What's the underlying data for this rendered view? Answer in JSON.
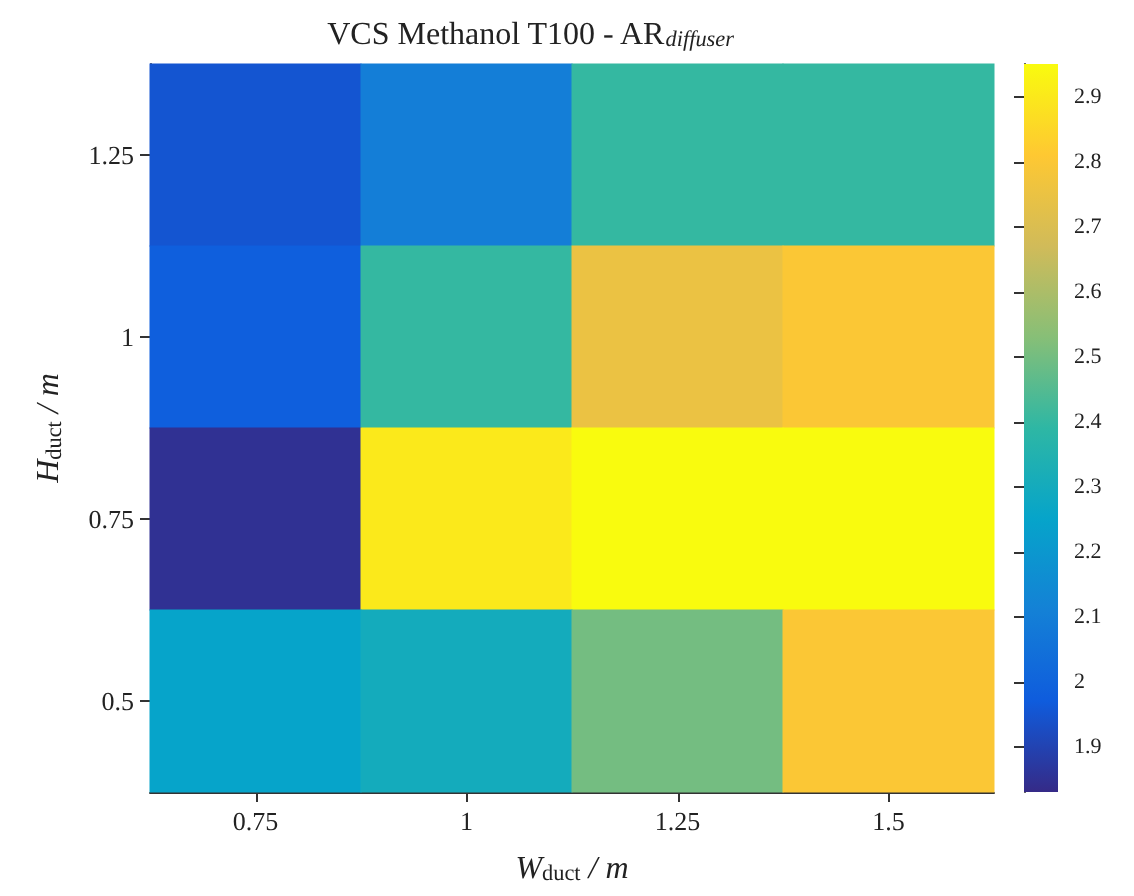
{
  "chart_data": {
    "type": "heatmap",
    "title": "VCS Methanol T100 - AR$_{diffuser}$",
    "xlabel": "W$_{duct}$ / m",
    "ylabel": "H$_{duct}$ / m",
    "categories": [
      "0.75",
      "1",
      "1.25",
      "1.5"
    ],
    "y_categories": [
      "1.25",
      "1",
      "0.75",
      "0.5"
    ],
    "cells": [
      [
        1.95,
        2.1,
        2.4,
        2.4
      ],
      [
        1.98,
        2.4,
        2.75,
        2.8
      ],
      [
        1.85,
        2.9,
        2.95,
        2.95
      ],
      [
        2.25,
        2.3,
        2.5,
        2.8
      ]
    ],
    "clim": [
      1.83,
      2.95
    ],
    "cticks": [
      1.9,
      2,
      2.1,
      2.2,
      2.3,
      2.4,
      2.5,
      2.6,
      2.7,
      2.8,
      2.9
    ]
  }
}
